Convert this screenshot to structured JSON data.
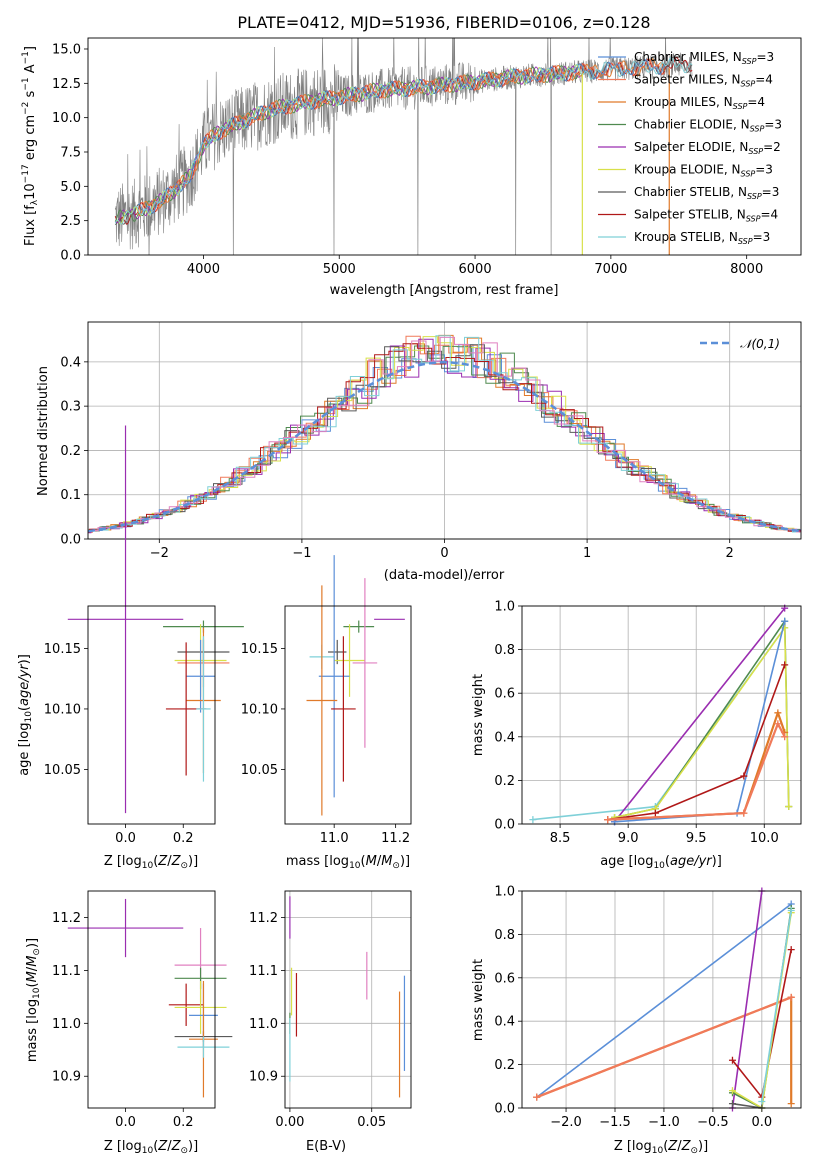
{
  "colors": {
    "chabrier_miles": "#5b8fd8",
    "salpeter_miles": "#f07a5a",
    "kroupa_miles": "#e07a2a",
    "chabrier_elodie": "#4f8a4f",
    "salpeter_elodie": "#9a2db0",
    "kroupa_elodie": "#d8e04a",
    "chabrier_stelib": "#5a5a5a",
    "salpeter_stelib": "#b01818",
    "kroupa_stelib": "#7fd0d8",
    "grid": "#b0b0b0",
    "pink": "#e080c0"
  },
  "chart_data": [
    {
      "id": "spectrum",
      "type": "line",
      "title": "PLATE=0412, MJD=51936, FIBERID=0106, z=0.128",
      "xlabel": "wavelength [Angstrom, rest frame]",
      "ylabel": "Flux [f_λ10^-17 erg cm^-2 s^-1 A^-1]",
      "xlim": [
        3150,
        8400
      ],
      "ylim": [
        0,
        15.8
      ],
      "xticks": [
        "4000",
        "5000",
        "6000",
        "7000",
        "8000"
      ],
      "yticks": [
        "0.0",
        "2.5",
        "5.0",
        "7.5",
        "10.0",
        "12.5",
        "15.0"
      ],
      "continuum": {
        "x": [
          3350,
          3500,
          3700,
          3900,
          4000,
          4100,
          4300,
          4500,
          4800,
          5000,
          5300,
          5600,
          6000,
          6300,
          6600,
          7000,
          7300,
          7600
        ],
        "y": [
          2.6,
          3.0,
          4.0,
          5.7,
          8.0,
          8.9,
          9.8,
          10.6,
          11.2,
          11.5,
          12.0,
          12.2,
          12.6,
          13.0,
          13.2,
          13.5,
          13.7,
          13.9
        ]
      },
      "series": [
        {
          "name": "Chabrier MILES, N_SSP=3",
          "color": "chabrier_miles"
        },
        {
          "name": "Salpeter MILES, N_SSP=4",
          "color": "salpeter_miles"
        },
        {
          "name": "Kroupa MILES, N_SSP=4",
          "color": "kroupa_miles"
        },
        {
          "name": "Chabrier ELODIE, N_SSP=3",
          "color": "chabrier_elodie"
        },
        {
          "name": "Salpeter ELODIE, N_SSP=2",
          "color": "salpeter_elodie"
        },
        {
          "name": "Kroupa ELODIE, N_SSP=3",
          "color": "kroupa_elodie"
        },
        {
          "name": "Chabrier STELIB, N_SSP=3",
          "color": "chabrier_stelib"
        },
        {
          "name": "Salpeter STELIB, N_SSP=4",
          "color": "salpeter_stelib"
        },
        {
          "name": "Kroupa STELIB, N_SSP=3",
          "color": "kroupa_stelib"
        }
      ]
    },
    {
      "id": "residuals",
      "type": "line",
      "xlabel": "(data-model)/error",
      "ylabel": "Normed distribution",
      "xlim": [
        -2.5,
        2.5
      ],
      "ylim": [
        0,
        0.49
      ],
      "xticks": [
        "−2",
        "−1",
        "0",
        "1",
        "2"
      ],
      "yticks": [
        "0.0",
        "0.1",
        "0.2",
        "0.3",
        "0.4"
      ],
      "legend": "𝒩(0,1)",
      "legend_position": "top-right",
      "grid": true
    },
    {
      "id": "age_vs_Z",
      "type": "scatter",
      "xlabel": "Z [log10(Z/Z⊙)]",
      "ylabel": "age  [log10(age/yr)]",
      "xlim": [
        -0.13,
        0.31
      ],
      "ylim": [
        10.005,
        10.185
      ],
      "xticks": [
        "0.0",
        "0.2"
      ],
      "yticks": [
        "10.05",
        "10.10",
        "10.15"
      ],
      "points": [
        {
          "c": "salpeter_elodie",
          "x": 0.0,
          "xe": 0.2,
          "y": 10.174,
          "ye": 0.16
        },
        {
          "c": "chabrier_elodie",
          "x": 0.27,
          "xe": 0.14,
          "y": 10.168,
          "ye": 0.005
        },
        {
          "c": "chabrier_stelib",
          "x": 0.27,
          "xe": 0.09,
          "y": 10.147,
          "ye": 0.01
        },
        {
          "c": "kroupa_elodie",
          "x": 0.26,
          "xe": 0.09,
          "y": 10.14,
          "ye": 0.03
        },
        {
          "c": "salpeter_miles",
          "x": 0.27,
          "xe": 0.09,
          "y": 10.138,
          "ye": 0.02
        },
        {
          "c": "chabrier_miles",
          "x": 0.26,
          "xe": 0.05,
          "y": 10.127,
          "ye": 0.03
        },
        {
          "c": "kroupa_miles",
          "x": 0.27,
          "xe": 0.06,
          "y": 10.107,
          "ye": 0.06
        },
        {
          "c": "salpeter_stelib",
          "x": 0.21,
          "xe": 0.07,
          "y": 10.1,
          "ye": 0.055
        },
        {
          "c": "kroupa_stelib",
          "x": 0.27,
          "xe": 0.025,
          "y": 10.1,
          "ye": 0.06
        }
      ]
    },
    {
      "id": "age_vs_mass",
      "type": "scatter",
      "xlabel": "mass [log10(M/M⊙)]",
      "ylabel": "",
      "xlim": [
        10.84,
        11.25
      ],
      "ylim": [
        10.005,
        10.185
      ],
      "xticks": [
        "11.0",
        "11.2"
      ],
      "yticks": [
        "10.05",
        "10.10",
        "10.15"
      ],
      "points": [
        {
          "c": "salpeter_elodie",
          "x": 11.18,
          "xe": 0.05,
          "y": 10.174,
          "ye": 0.0
        },
        {
          "c": "chabrier_elodie",
          "x": 11.08,
          "xe": 0.05,
          "y": 10.168,
          "ye": 0.005
        },
        {
          "c": "chabrier_stelib",
          "x": 11.01,
          "xe": 0.03,
          "y": 10.147,
          "ye": 0.01
        },
        {
          "c": "kroupa_elodie",
          "x": 11.05,
          "xe": 0.05,
          "y": 10.14,
          "ye": 0.03
        },
        {
          "c": "kroupa_stelib",
          "x": 10.96,
          "xe": 0.04,
          "y": 10.143,
          "ye": 0.01
        },
        {
          "c": "pink",
          "x": 11.1,
          "xe": 0.04,
          "y": 10.138,
          "ye": 0.07
        },
        {
          "c": "chabrier_miles",
          "x": 11.0,
          "xe": 0.05,
          "y": 10.127,
          "ye": 0.1
        },
        {
          "c": "kroupa_miles",
          "x": 10.96,
          "xe": 0.05,
          "y": 10.107,
          "ye": 0.095
        },
        {
          "c": "salpeter_stelib",
          "x": 11.03,
          "xe": 0.04,
          "y": 10.1,
          "ye": 0.06
        }
      ]
    },
    {
      "id": "weight_vs_age",
      "type": "line",
      "xlabel": "age  [log10(age/yr)]",
      "ylabel": "mass weight",
      "xlim": [
        8.22,
        10.27
      ],
      "ylim": [
        0,
        1.0
      ],
      "xticks": [
        "8.5",
        "9.0",
        "9.5",
        "10.0"
      ],
      "yticks": [
        "0.0",
        "0.2",
        "0.4",
        "0.6",
        "0.8",
        "1.0"
      ],
      "series": [
        {
          "c": "kroupa_stelib",
          "x": [
            8.3,
            9.2,
            10.15
          ],
          "y": [
            0.02,
            0.08,
            0.9
          ]
        },
        {
          "c": "salpeter_elodie",
          "x": [
            8.9,
            10.15
          ],
          "y": [
            0.01,
            0.99
          ]
        },
        {
          "c": "chabrier_elodie",
          "x": [
            8.9,
            9.2,
            10.15,
            10.18
          ],
          "y": [
            0.03,
            0.07,
            0.93,
            0.08
          ]
        },
        {
          "c": "kroupa_elodie",
          "x": [
            8.9,
            9.2,
            10.15,
            10.18
          ],
          "y": [
            0.03,
            0.07,
            0.9,
            0.08
          ]
        },
        {
          "c": "chabrier_miles",
          "x": [
            8.9,
            9.8,
            10.15
          ],
          "y": [
            0.01,
            0.05,
            0.93
          ]
        },
        {
          "c": "salpeter_stelib",
          "x": [
            8.85,
            9.2,
            9.85,
            10.15
          ],
          "y": [
            0.02,
            0.05,
            0.22,
            0.73
          ]
        },
        {
          "c": "kroupa_miles",
          "x": [
            8.85,
            9.85,
            10.1,
            10.15
          ],
          "y": [
            0.02,
            0.05,
            0.51,
            0.42
          ]
        },
        {
          "c": "salpeter_miles",
          "x": [
            8.85,
            9.85,
            10.1,
            10.15
          ],
          "y": [
            0.02,
            0.05,
            0.46,
            0.4
          ]
        }
      ],
      "grid": true
    },
    {
      "id": "mass_vs_Z",
      "type": "scatter",
      "xlabel": "Z [log10(Z/Z⊙)]",
      "ylabel": "mass [log10(M/M⊙)]",
      "xlim": [
        -0.13,
        0.31
      ],
      "ylim": [
        10.84,
        11.25
      ],
      "xticks": [
        "0.0",
        "0.2"
      ],
      "yticks": [
        "10.9",
        "11.0",
        "11.1",
        "11.2"
      ],
      "points": [
        {
          "c": "salpeter_elodie",
          "x": 0.0,
          "xe": 0.2,
          "y": 11.18,
          "ye": 0.055
        },
        {
          "c": "pink",
          "x": 0.26,
          "xe": 0.09,
          "y": 11.11,
          "ye": 0.07
        },
        {
          "c": "chabrier_elodie",
          "x": 0.26,
          "xe": 0.09,
          "y": 11.085,
          "ye": 0.02
        },
        {
          "c": "salpeter_stelib",
          "x": 0.21,
          "xe": 0.06,
          "y": 11.035,
          "ye": 0.04
        },
        {
          "c": "kroupa_elodie",
          "x": 0.26,
          "xe": 0.09,
          "y": 11.03,
          "ye": 0.05
        },
        {
          "c": "chabrier_miles",
          "x": 0.27,
          "xe": 0.05,
          "y": 11.015,
          "ye": 0.06
        },
        {
          "c": "chabrier_stelib",
          "x": 0.27,
          "xe": 0.1,
          "y": 10.975,
          "ye": 0.01
        },
        {
          "c": "kroupa_miles",
          "x": 0.27,
          "xe": 0.05,
          "y": 10.97,
          "ye": 0.11
        },
        {
          "c": "kroupa_stelib",
          "x": 0.27,
          "xe": 0.09,
          "y": 10.955,
          "ye": 0.02
        }
      ]
    },
    {
      "id": "mass_vs_ebv",
      "type": "scatter",
      "xlabel": "E(B-V)",
      "ylabel": "",
      "xlim": [
        -0.003,
        0.074
      ],
      "ylim": [
        10.84,
        11.25
      ],
      "xticks": [
        "0.00",
        "0.05"
      ],
      "yticks": [
        "10.9",
        "11.0",
        "11.1",
        "11.2"
      ],
      "points": [
        {
          "c": "salpeter_elodie",
          "x": 0.0,
          "xe": 0.0,
          "y": 11.2,
          "ye": 0.04
        },
        {
          "c": "pink",
          "x": 0.047,
          "xe": 0.0,
          "y": 11.09,
          "ye": 0.045
        },
        {
          "c": "kroupa_elodie",
          "x": 0.001,
          "xe": 0.0,
          "y": 11.06,
          "ye": 0.045
        },
        {
          "c": "salpeter_stelib",
          "x": 0.004,
          "xe": 0.0,
          "y": 11.035,
          "ye": 0.06
        },
        {
          "c": "chabrier_elodie",
          "x": 0.0,
          "xe": 0.0,
          "y": 11.0,
          "ye": 0.02
        },
        {
          "c": "chabrier_miles",
          "x": 0.07,
          "xe": 0.0,
          "y": 11.0,
          "ye": 0.09
        },
        {
          "c": "kroupa_miles",
          "x": 0.067,
          "xe": 0.0,
          "y": 10.96,
          "ye": 0.1
        },
        {
          "c": "kroupa_stelib",
          "x": 0.0,
          "xe": 0.0,
          "y": 10.95,
          "ye": 0.06
        }
      ]
    },
    {
      "id": "weight_vs_Z",
      "type": "line",
      "xlabel": "Z [log10(Z/Z⊙)]",
      "ylabel": "mass weight",
      "xlim": [
        -2.45,
        0.4
      ],
      "ylim": [
        0,
        1.0
      ],
      "xticks": [
        "−2.0",
        "−1.5",
        "−1.0",
        "−0.5",
        "0.0"
      ],
      "yticks": [
        "0.0",
        "0.2",
        "0.4",
        "0.6",
        "0.8",
        "1.0"
      ],
      "series": [
        {
          "c": "chabrier_miles",
          "x": [
            -2.3,
            0.3
          ],
          "y": [
            0.05,
            0.94
          ]
        },
        {
          "c": "kroupa_miles",
          "x": [
            -2.3,
            0.3,
            0.3
          ],
          "y": [
            0.05,
            0.51,
            0.02
          ]
        },
        {
          "c": "salpeter_miles",
          "x": [
            -2.3,
            0.3
          ],
          "y": [
            0.05,
            0.51
          ]
        },
        {
          "c": "salpeter_elodie",
          "x": [
            -0.3,
            0.0
          ],
          "y": [
            0.0,
            1.0
          ]
        },
        {
          "c": "salpeter_stelib",
          "x": [
            -0.3,
            0.0,
            0.3
          ],
          "y": [
            0.22,
            0.05,
            0.73
          ]
        },
        {
          "c": "chabrier_elodie",
          "x": [
            -0.3,
            0.0,
            0.3
          ],
          "y": [
            0.07,
            0.0,
            0.92
          ]
        },
        {
          "c": "kroupa_elodie",
          "x": [
            -0.3,
            0.0,
            0.3
          ],
          "y": [
            0.08,
            0.0,
            0.9
          ]
        },
        {
          "c": "kroupa_stelib",
          "x": [
            0.0,
            0.3
          ],
          "y": [
            0.03,
            0.91
          ]
        },
        {
          "c": "chabrier_stelib",
          "x": [
            -0.3,
            0.0
          ],
          "y": [
            0.02,
            0.0
          ]
        }
      ],
      "grid": true
    }
  ]
}
